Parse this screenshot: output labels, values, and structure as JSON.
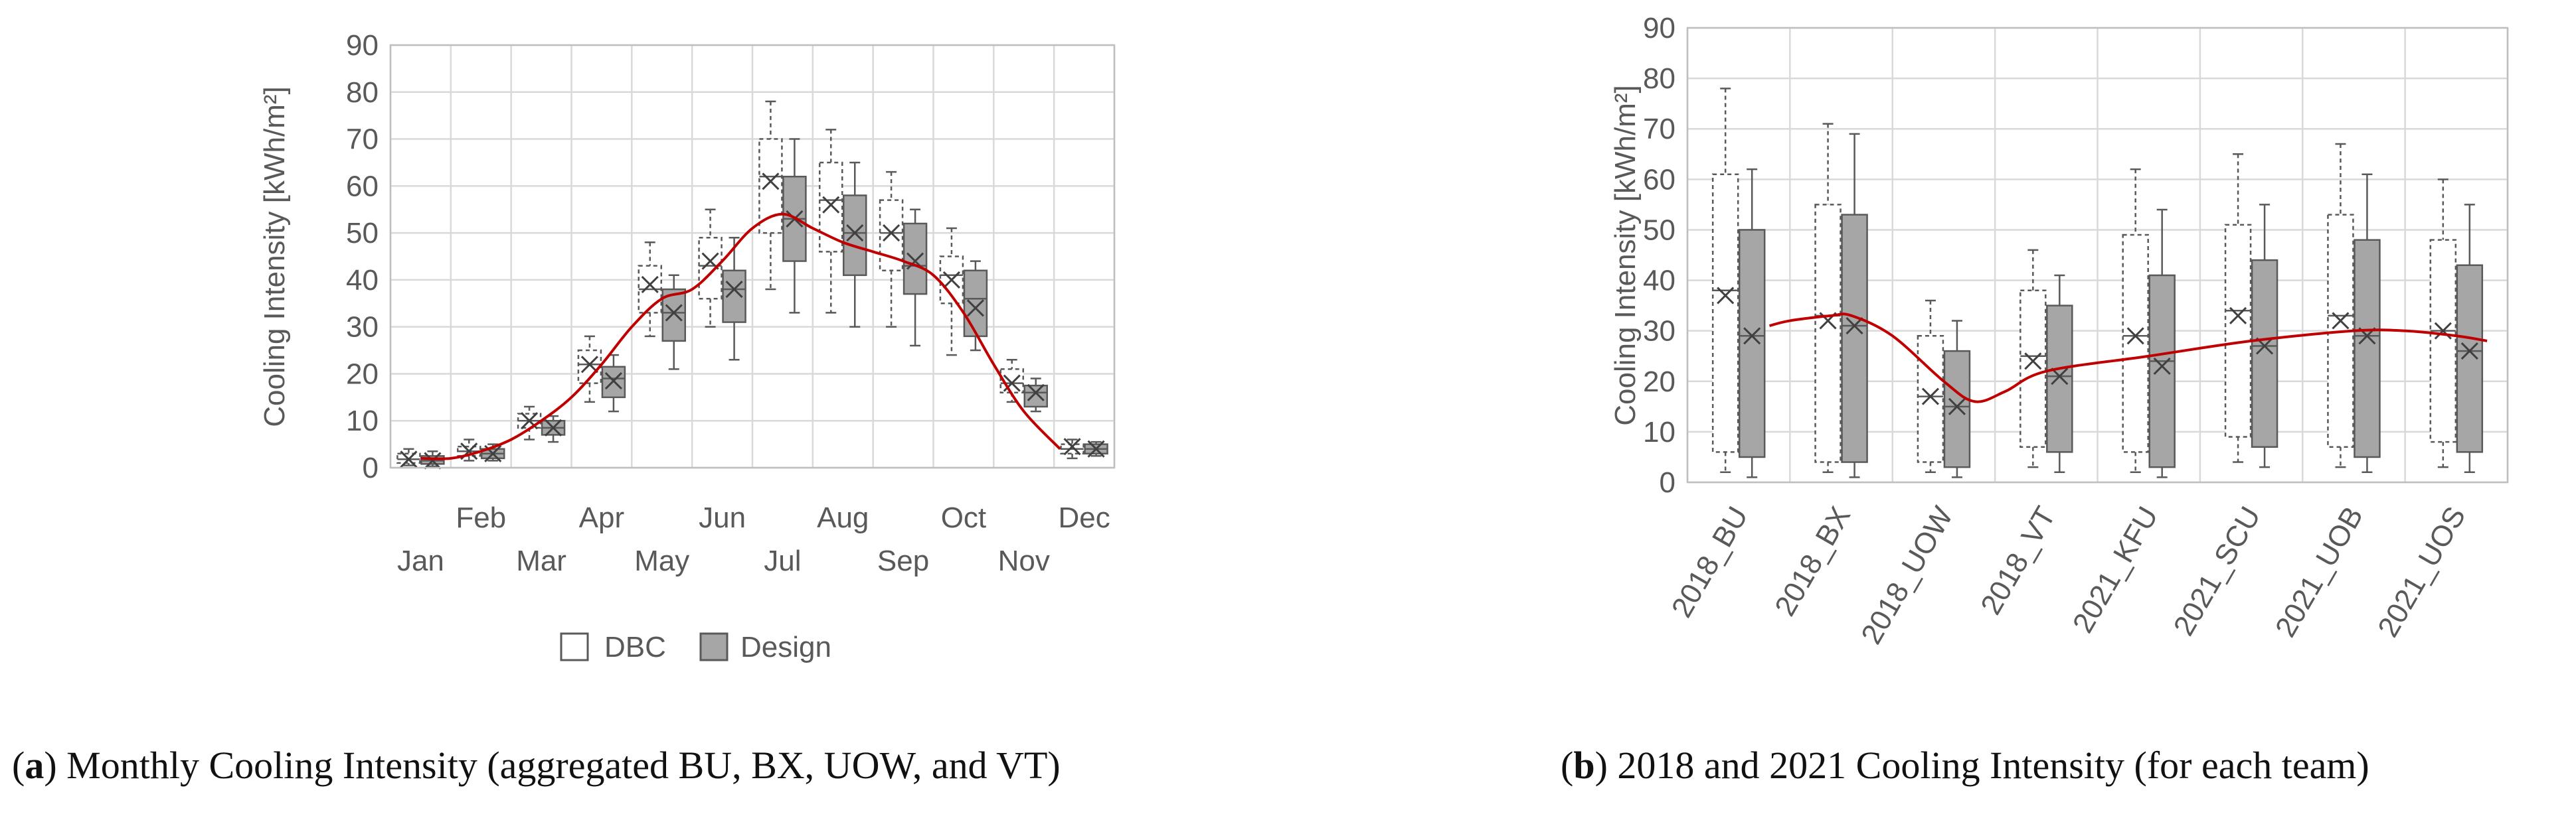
{
  "chart_data": [
    {
      "type": "boxplot",
      "id": "a",
      "caption_letter": "a",
      "caption_text": ") Monthly Cooling Intensity (aggregated BU, BX, UOW, and VT)",
      "ylabel": "Cooling Intensity [kWh/m²]",
      "ylim": [
        0,
        90
      ],
      "yticks": [
        0,
        10,
        20,
        30,
        40,
        50,
        60,
        70,
        80,
        90
      ],
      "grid": true,
      "legend": [
        "DBC",
        "Design"
      ],
      "legend_position": "bottom-center",
      "colors": {
        "dbc_fill": "#ffffff",
        "design_fill": "#a6a6a6",
        "trend": "#c00000",
        "grid": "#d9d9d9",
        "text": "#595959"
      },
      "categories": [
        "Jan",
        "Feb",
        "Mar",
        "Apr",
        "May",
        "Jun",
        "Jul",
        "Aug",
        "Sep",
        "Oct",
        "Nov",
        "Dec"
      ],
      "series": [
        {
          "name": "DBC",
          "boxes": [
            {
              "min": 0.5,
              "q1": 1,
              "median": 1.8,
              "q3": 3,
              "max": 4,
              "mean": 1.8
            },
            {
              "min": 1.5,
              "q1": 2.5,
              "median": 3.5,
              "q3": 4.5,
              "max": 6,
              "mean": 3.5
            },
            {
              "min": 6,
              "q1": 8.5,
              "median": 10,
              "q3": 11.5,
              "max": 13,
              "mean": 10
            },
            {
              "min": 14,
              "q1": 18,
              "median": 22,
              "q3": 25,
              "max": 28,
              "mean": 22
            },
            {
              "min": 28,
              "q1": 33,
              "median": 38,
              "q3": 43,
              "max": 48,
              "mean": 39
            },
            {
              "min": 30,
              "q1": 36,
              "median": 43,
              "q3": 49,
              "max": 55,
              "mean": 44
            },
            {
              "min": 38,
              "q1": 50,
              "median": 62,
              "q3": 70,
              "max": 78,
              "mean": 61
            },
            {
              "min": 33,
              "q1": 46,
              "median": 57,
              "q3": 65,
              "max": 72,
              "mean": 56
            },
            {
              "min": 30,
              "q1": 42,
              "median": 50,
              "q3": 57,
              "max": 63,
              "mean": 50
            },
            {
              "min": 24,
              "q1": 35,
              "median": 41,
              "q3": 45,
              "max": 51,
              "mean": 40
            },
            {
              "min": 14,
              "q1": 16,
              "median": 18,
              "q3": 21,
              "max": 23,
              "mean": 18
            },
            {
              "min": 2,
              "q1": 3,
              "median": 4,
              "q3": 5,
              "max": 6,
              "mean": 4.5
            }
          ]
        },
        {
          "name": "Design",
          "boxes": [
            {
              "min": 0.3,
              "q1": 0.8,
              "median": 1.5,
              "q3": 2.5,
              "max": 3.5,
              "mean": 1.5
            },
            {
              "min": 1.5,
              "q1": 2,
              "median": 3,
              "q3": 4,
              "max": 5,
              "mean": 3
            },
            {
              "min": 5.5,
              "q1": 7,
              "median": 8.5,
              "q3": 10,
              "max": 11,
              "mean": 8.5
            },
            {
              "min": 12,
              "q1": 15,
              "median": 19,
              "q3": 21.5,
              "max": 24,
              "mean": 18.5
            },
            {
              "min": 21,
              "q1": 27,
              "median": 33,
              "q3": 38,
              "max": 41,
              "mean": 33
            },
            {
              "min": 23,
              "q1": 31,
              "median": 38,
              "q3": 42,
              "max": 49,
              "mean": 38
            },
            {
              "min": 33,
              "q1": 44,
              "median": 53,
              "q3": 62,
              "max": 70,
              "mean": 53
            },
            {
              "min": 30,
              "q1": 41,
              "median": 50,
              "q3": 58,
              "max": 65,
              "mean": 50
            },
            {
              "min": 26,
              "q1": 37,
              "median": 43,
              "q3": 52,
              "max": 55,
              "mean": 44
            },
            {
              "min": 25,
              "q1": 28,
              "median": 36,
              "q3": 42,
              "max": 44,
              "mean": 34
            },
            {
              "min": 12,
              "q1": 13,
              "median": 16,
              "q3": 17.5,
              "max": 19,
              "mean": 16
            },
            {
              "min": 2.5,
              "q1": 3,
              "median": 4,
              "q3": 5,
              "max": 5.5,
              "mean": 4
            }
          ]
        }
      ],
      "trend": [
        [
          0,
          2
        ],
        [
          0.5,
          2
        ],
        [
          1,
          3.5
        ],
        [
          1.5,
          6
        ],
        [
          2,
          10
        ],
        [
          2.5,
          15
        ],
        [
          3,
          22
        ],
        [
          3.5,
          30
        ],
        [
          4,
          36
        ],
        [
          4.5,
          38
        ],
        [
          5,
          44
        ],
        [
          5.5,
          51
        ],
        [
          6,
          54
        ],
        [
          6.5,
          51
        ],
        [
          7,
          48
        ],
        [
          7.5,
          46
        ],
        [
          8,
          44
        ],
        [
          8.5,
          41
        ],
        [
          9,
          33
        ],
        [
          9.5,
          22
        ],
        [
          10,
          12
        ],
        [
          10.6,
          4
        ]
      ]
    },
    {
      "type": "boxplot",
      "id": "b",
      "caption_letter": "b",
      "caption_text": ") 2018 and 2021 Cooling Intensity (for each team)",
      "ylabel": "Cooling Intensity [kWh/m²]",
      "ylim": [
        0,
        90
      ],
      "yticks": [
        0,
        10,
        20,
        30,
        40,
        50,
        60,
        70,
        80,
        90
      ],
      "grid": true,
      "categories": [
        "2018_BU",
        "2018_BX",
        "2018_UOW",
        "2018_VT",
        "2021_KFU",
        "2021_SCU",
        "2021_UOB",
        "2021_UOS"
      ],
      "series": [
        {
          "name": "DBC",
          "boxes": [
            {
              "min": 2,
              "q1": 6,
              "median": 38,
              "q3": 61,
              "max": 78,
              "mean": 37
            },
            {
              "min": 2,
              "q1": 4,
              "median": 33,
              "q3": 55,
              "max": 71,
              "mean": 32
            },
            {
              "min": 2,
              "q1": 4,
              "median": 17,
              "q3": 29,
              "max": 36,
              "mean": 17
            },
            {
              "min": 3,
              "q1": 7,
              "median": 25,
              "q3": 38,
              "max": 46,
              "mean": 24
            },
            {
              "min": 2,
              "q1": 6,
              "median": 29,
              "q3": 49,
              "max": 62,
              "mean": 29
            },
            {
              "min": 4,
              "q1": 9,
              "median": 34,
              "q3": 51,
              "max": 65,
              "mean": 33
            },
            {
              "min": 3,
              "q1": 7,
              "median": 33,
              "q3": 53,
              "max": 67,
              "mean": 32
            },
            {
              "min": 3,
              "q1": 8,
              "median": 30,
              "q3": 48,
              "max": 60,
              "mean": 30
            }
          ]
        },
        {
          "name": "Design",
          "boxes": [
            {
              "min": 1,
              "q1": 5,
              "median": 29,
              "q3": 50,
              "max": 62,
              "mean": 29
            },
            {
              "min": 1,
              "q1": 4,
              "median": 31,
              "q3": 53,
              "max": 69,
              "mean": 31
            },
            {
              "min": 1,
              "q1": 3,
              "median": 15,
              "q3": 26,
              "max": 32,
              "mean": 15
            },
            {
              "min": 2,
              "q1": 6,
              "median": 21,
              "q3": 35,
              "max": 41,
              "mean": 21
            },
            {
              "min": 1,
              "q1": 3,
              "median": 24,
              "q3": 41,
              "max": 54,
              "mean": 23
            },
            {
              "min": 3,
              "q1": 7,
              "median": 27,
              "q3": 44,
              "max": 55,
              "mean": 27
            },
            {
              "min": 2,
              "q1": 5,
              "median": 29,
              "q3": 48,
              "max": 61,
              "mean": 29
            },
            {
              "min": 2,
              "q1": 6,
              "median": 26,
              "q3": 43,
              "max": 55,
              "mean": 26
            }
          ]
        }
      ],
      "trend": [
        [
          0.3,
          31
        ],
        [
          0.5,
          32
        ],
        [
          0.9,
          33
        ],
        [
          1.1,
          33
        ],
        [
          1.5,
          29
        ],
        [
          2,
          20
        ],
        [
          2.3,
          16
        ],
        [
          2.6,
          18
        ],
        [
          3,
          22
        ],
        [
          4,
          25
        ],
        [
          5,
          28
        ],
        [
          6,
          30
        ],
        [
          6.5,
          30
        ],
        [
          7,
          29
        ],
        [
          7.3,
          28
        ]
      ]
    }
  ]
}
